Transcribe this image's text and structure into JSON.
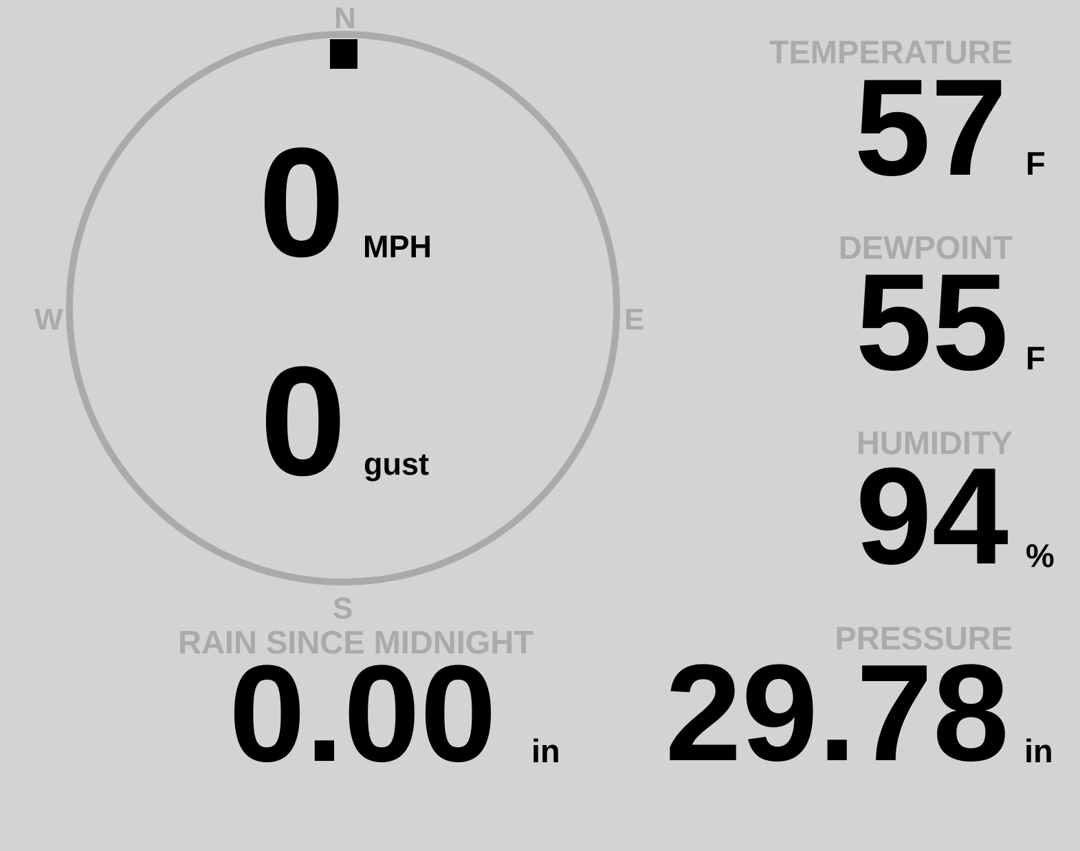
{
  "colors": {
    "background": "#d3d3d3",
    "label": "#aaaaaa",
    "value": "#000000"
  },
  "compass": {
    "directions": {
      "n": "N",
      "e": "E",
      "s": "S",
      "w": "W"
    },
    "wind_direction_deg": 0,
    "wind_speed": "0",
    "wind_speed_unit": "MPH",
    "gust": "0",
    "gust_unit": "gust"
  },
  "temperature": {
    "label": "TEMPERATURE",
    "value": "57",
    "unit": "F"
  },
  "dewpoint": {
    "label": "DEWPOINT",
    "value": "55",
    "unit": "F"
  },
  "humidity": {
    "label": "HUMIDITY",
    "value": "94",
    "unit": "%"
  },
  "pressure": {
    "label": "PRESSURE",
    "value": "29.78",
    "unit": "in"
  },
  "rain": {
    "label": "RAIN SINCE MIDNIGHT",
    "value": "0.00",
    "unit": "in"
  }
}
